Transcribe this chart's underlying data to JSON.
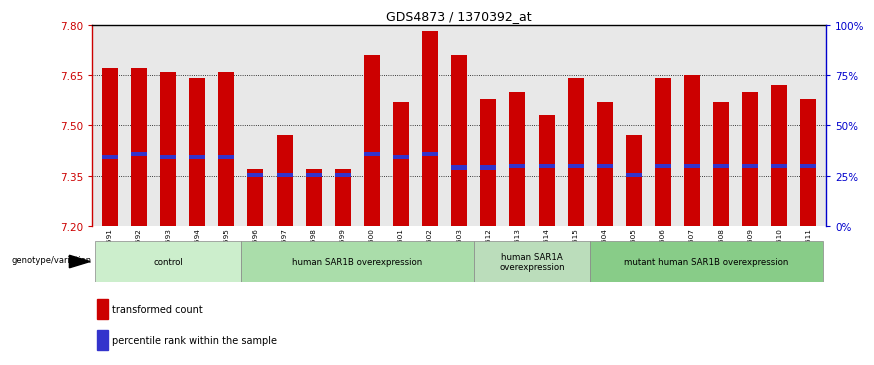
{
  "title": "GDS4873 / 1370392_at",
  "samples": [
    "GSM1279591",
    "GSM1279592",
    "GSM1279593",
    "GSM1279594",
    "GSM1279595",
    "GSM1279596",
    "GSM1279597",
    "GSM1279598",
    "GSM1279599",
    "GSM1279600",
    "GSM1279601",
    "GSM1279602",
    "GSM1279603",
    "GSM1279612",
    "GSM1279613",
    "GSM1279614",
    "GSM1279615",
    "GSM1279604",
    "GSM1279605",
    "GSM1279606",
    "GSM1279607",
    "GSM1279608",
    "GSM1279609",
    "GSM1279610",
    "GSM1279611"
  ],
  "bar_tops": [
    7.67,
    7.67,
    7.66,
    7.64,
    7.66,
    7.37,
    7.47,
    7.37,
    7.37,
    7.71,
    7.57,
    7.78,
    7.71,
    7.58,
    7.6,
    7.53,
    7.64,
    7.57,
    7.47,
    7.64,
    7.65,
    7.57,
    7.6,
    7.62,
    7.58
  ],
  "blue_markers": [
    7.405,
    7.415,
    7.405,
    7.405,
    7.405,
    7.352,
    7.352,
    7.352,
    7.352,
    7.415,
    7.405,
    7.415,
    7.375,
    7.375,
    7.38,
    7.38,
    7.38,
    7.38,
    7.352,
    7.38,
    7.38,
    7.38,
    7.38,
    7.38,
    7.38
  ],
  "y_min": 7.2,
  "y_max": 7.8,
  "y_ticks": [
    7.2,
    7.35,
    7.5,
    7.65,
    7.8
  ],
  "right_ticks": [
    0,
    25,
    50,
    75,
    100
  ],
  "bar_color": "#CC0000",
  "blue_color": "#3333CC",
  "groups": [
    {
      "label": "control",
      "start": 0,
      "end": 5,
      "color": "#CCEECC"
    },
    {
      "label": "human SAR1B overexpression",
      "start": 5,
      "end": 13,
      "color": "#AADDAA"
    },
    {
      "label": "human SAR1A\noverexpression",
      "start": 13,
      "end": 17,
      "color": "#BBDDBB"
    },
    {
      "label": "mutant human SAR1B overexpression",
      "start": 17,
      "end": 25,
      "color": "#88CC88"
    }
  ],
  "legend_label_red": "transformed count",
  "legend_label_blue": "percentile rank within the sample",
  "genotype_label": "genotype/variation",
  "left_axis_color": "#CC0000",
  "right_axis_color": "#0000CC",
  "bg_color": "#E8E8E8"
}
